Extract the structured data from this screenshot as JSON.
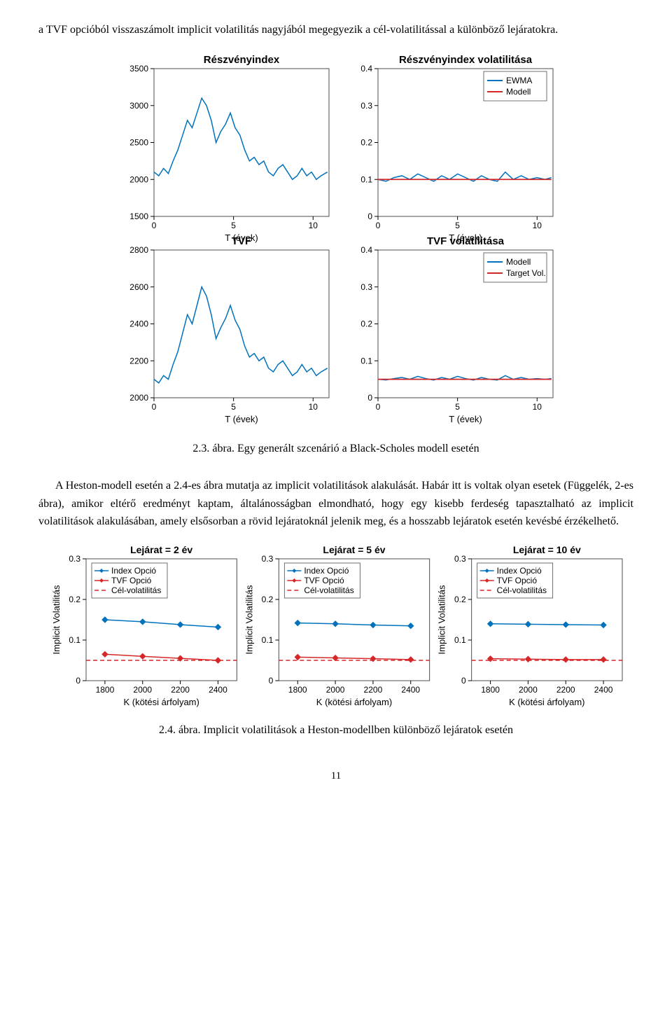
{
  "para_top": "a TVF opcióból visszaszámolt implicit volatilitás nagyjából megegyezik a cél-volatilitással a különböző lejáratokra.",
  "fig1_caption": "2.3. ábra. Egy generált szcenárió a Black-Scholes modell esetén",
  "para_mid": "A Heston-modell esetén a 2.4-es ábra mutatja az implicit volatilitások alakulását. Habár itt is voltak olyan esetek (Függelék, 2-es ábra), amikor eltérő eredményt kaptam, általánosságban elmondható, hogy egy kisebb ferdeség tapasztalható az implicit volatilitások alakulásában, amely elsősorban a rövid lejáratoknál jelenik meg, és a hosszabb lejáratok esetén kevésbé érzékelhető.",
  "fig2_caption": "2.4. ábra. Implicit volatilitások a Heston-modellben különböző lejáratok esetén",
  "page_number": "11",
  "colors": {
    "line_blue": "#0072bd",
    "line_red": "#d62728",
    "axis": "#000000",
    "box": "#4d4d4d",
    "marker": "#0072bd"
  },
  "fig1": {
    "panels": [
      {
        "key": "A",
        "title": "Részvényindex",
        "xlabel": "T (évek)",
        "ylabel": "",
        "xlim": [
          0,
          11
        ],
        "ylim": [
          1500,
          3500
        ],
        "xticks": [
          0,
          5,
          10
        ],
        "yticks": [
          1500,
          2000,
          2500,
          3000,
          3500
        ],
        "series": [
          {
            "name": "index",
            "color": "#0072bd",
            "width": 1.5,
            "dash": "",
            "pts": [
              [
                0,
                2100
              ],
              [
                0.3,
                2050
              ],
              [
                0.6,
                2150
              ],
              [
                0.9,
                2080
              ],
              [
                1.2,
                2250
              ],
              [
                1.5,
                2400
              ],
              [
                1.8,
                2600
              ],
              [
                2.1,
                2800
              ],
              [
                2.4,
                2700
              ],
              [
                2.7,
                2900
              ],
              [
                3.0,
                3100
              ],
              [
                3.3,
                3000
              ],
              [
                3.6,
                2800
              ],
              [
                3.9,
                2500
              ],
              [
                4.2,
                2650
              ],
              [
                4.5,
                2750
              ],
              [
                4.8,
                2900
              ],
              [
                5.1,
                2700
              ],
              [
                5.4,
                2600
              ],
              [
                5.7,
                2400
              ],
              [
                6.0,
                2250
              ],
              [
                6.3,
                2300
              ],
              [
                6.6,
                2200
              ],
              [
                6.9,
                2250
              ],
              [
                7.2,
                2100
              ],
              [
                7.5,
                2050
              ],
              [
                7.8,
                2150
              ],
              [
                8.1,
                2200
              ],
              [
                8.4,
                2100
              ],
              [
                8.7,
                2000
              ],
              [
                9.0,
                2050
              ],
              [
                9.3,
                2150
              ],
              [
                9.6,
                2050
              ],
              [
                9.9,
                2100
              ],
              [
                10.2,
                2000
              ],
              [
                10.5,
                2050
              ],
              [
                10.9,
                2100
              ]
            ]
          }
        ],
        "legend": null
      },
      {
        "key": "B",
        "title": "Részvényindex volatilitása",
        "xlabel": "T (évek)",
        "ylabel": "",
        "xlim": [
          0,
          11
        ],
        "ylim": [
          0,
          0.4
        ],
        "xticks": [
          0,
          5,
          10
        ],
        "yticks": [
          0,
          0.1,
          0.2,
          0.3,
          0.4
        ],
        "series": [
          {
            "name": "EWMA",
            "color": "#0072bd",
            "width": 1.5,
            "dash": "",
            "pts": [
              [
                0,
                0.1
              ],
              [
                0.5,
                0.095
              ],
              [
                1,
                0.105
              ],
              [
                1.5,
                0.11
              ],
              [
                2,
                0.1
              ],
              [
                2.5,
                0.115
              ],
              [
                3,
                0.105
              ],
              [
                3.5,
                0.095
              ],
              [
                4,
                0.11
              ],
              [
                4.5,
                0.1
              ],
              [
                5,
                0.115
              ],
              [
                5.5,
                0.105
              ],
              [
                6,
                0.095
              ],
              [
                6.5,
                0.11
              ],
              [
                7,
                0.1
              ],
              [
                7.5,
                0.095
              ],
              [
                8,
                0.12
              ],
              [
                8.5,
                0.1
              ],
              [
                9,
                0.11
              ],
              [
                9.5,
                0.1
              ],
              [
                10,
                0.105
              ],
              [
                10.5,
                0.1
              ],
              [
                10.9,
                0.105
              ]
            ]
          },
          {
            "name": "Modell",
            "color": "#d62728",
            "width": 1.8,
            "dash": "",
            "pts": [
              [
                0,
                0.1
              ],
              [
                10.9,
                0.1
              ]
            ]
          }
        ],
        "legend": {
          "pos": "ne",
          "items": [
            {
              "label": "EWMA",
              "color": "#0072bd"
            },
            {
              "label": "Modell",
              "color": "#d62728"
            }
          ]
        }
      },
      {
        "key": "C",
        "title": "TVF",
        "xlabel": "T (évek)",
        "ylabel": "",
        "xlim": [
          0,
          11
        ],
        "ylim": [
          2000,
          2800
        ],
        "xticks": [
          0,
          5,
          10
        ],
        "yticks": [
          2000,
          2200,
          2400,
          2600,
          2800
        ],
        "series": [
          {
            "name": "tvf",
            "color": "#0072bd",
            "width": 1.5,
            "dash": "",
            "pts": [
              [
                0,
                2100
              ],
              [
                0.3,
                2080
              ],
              [
                0.6,
                2120
              ],
              [
                0.9,
                2100
              ],
              [
                1.2,
                2180
              ],
              [
                1.5,
                2250
              ],
              [
                1.8,
                2350
              ],
              [
                2.1,
                2450
              ],
              [
                2.4,
                2400
              ],
              [
                2.7,
                2500
              ],
              [
                3.0,
                2600
              ],
              [
                3.3,
                2550
              ],
              [
                3.6,
                2450
              ],
              [
                3.9,
                2320
              ],
              [
                4.2,
                2380
              ],
              [
                4.5,
                2430
              ],
              [
                4.8,
                2500
              ],
              [
                5.1,
                2420
              ],
              [
                5.4,
                2370
              ],
              [
                5.7,
                2280
              ],
              [
                6.0,
                2220
              ],
              [
                6.3,
                2240
              ],
              [
                6.6,
                2200
              ],
              [
                6.9,
                2220
              ],
              [
                7.2,
                2160
              ],
              [
                7.5,
                2140
              ],
              [
                7.8,
                2180
              ],
              [
                8.1,
                2200
              ],
              [
                8.4,
                2160
              ],
              [
                8.7,
                2120
              ],
              [
                9.0,
                2140
              ],
              [
                9.3,
                2180
              ],
              [
                9.6,
                2140
              ],
              [
                9.9,
                2160
              ],
              [
                10.2,
                2120
              ],
              [
                10.5,
                2140
              ],
              [
                10.9,
                2160
              ]
            ]
          }
        ],
        "legend": null
      },
      {
        "key": "D",
        "title": "TVF volatilitása",
        "xlabel": "T (évek)",
        "ylabel": "",
        "xlim": [
          0,
          11
        ],
        "ylim": [
          0,
          0.4
        ],
        "xticks": [
          0,
          5,
          10
        ],
        "yticks": [
          0,
          0.1,
          0.2,
          0.3,
          0.4
        ],
        "series": [
          {
            "name": "Modell",
            "color": "#0072bd",
            "width": 1.5,
            "dash": "",
            "pts": [
              [
                0,
                0.05
              ],
              [
                0.5,
                0.048
              ],
              [
                1,
                0.052
              ],
              [
                1.5,
                0.055
              ],
              [
                2,
                0.05
              ],
              [
                2.5,
                0.058
              ],
              [
                3,
                0.052
              ],
              [
                3.5,
                0.048
              ],
              [
                4,
                0.055
              ],
              [
                4.5,
                0.05
              ],
              [
                5,
                0.058
              ],
              [
                5.5,
                0.052
              ],
              [
                6,
                0.048
              ],
              [
                6.5,
                0.055
              ],
              [
                7,
                0.05
              ],
              [
                7.5,
                0.048
              ],
              [
                8,
                0.06
              ],
              [
                8.5,
                0.05
              ],
              [
                9,
                0.055
              ],
              [
                9.5,
                0.05
              ],
              [
                10,
                0.052
              ],
              [
                10.5,
                0.05
              ],
              [
                10.9,
                0.052
              ]
            ]
          },
          {
            "name": "Target Vol.",
            "color": "#d62728",
            "width": 1.8,
            "dash": "",
            "pts": [
              [
                0,
                0.05
              ],
              [
                10.9,
                0.05
              ]
            ]
          }
        ],
        "legend": {
          "pos": "ne",
          "items": [
            {
              "label": "Modell",
              "color": "#0072bd"
            },
            {
              "label": "Target Vol.",
              "color": "#d62728"
            }
          ]
        }
      }
    ]
  },
  "fig2": {
    "xlabel": "K (kötési árfolyam)",
    "ylabel": "Implicit Volatilitás",
    "xlim": [
      1700,
      2500
    ],
    "ylim": [
      0,
      0.3
    ],
    "xticks": [
      1800,
      2000,
      2200,
      2400
    ],
    "yticks": [
      0,
      0.1,
      0.2,
      0.3
    ],
    "legend_items": [
      {
        "label": "Index Opció",
        "color": "#0072bd",
        "dash": "",
        "marker": true
      },
      {
        "label": "TVF Opció",
        "color": "#d62728",
        "dash": "",
        "marker": true
      },
      {
        "label": "Cél-volatilitás",
        "color": "#d62728",
        "dash": "6,4",
        "marker": false
      }
    ],
    "panels": [
      {
        "title": "Lejárat = 2 év",
        "series": [
          {
            "color": "#0072bd",
            "dash": "",
            "marker": true,
            "pts": [
              [
                1800,
                0.15
              ],
              [
                2000,
                0.145
              ],
              [
                2200,
                0.138
              ],
              [
                2400,
                0.132
              ]
            ]
          },
          {
            "color": "#d62728",
            "dash": "",
            "marker": true,
            "pts": [
              [
                1800,
                0.065
              ],
              [
                2000,
                0.06
              ],
              [
                2200,
                0.055
              ],
              [
                2400,
                0.05
              ]
            ]
          },
          {
            "color": "#d62728",
            "dash": "6,4",
            "marker": false,
            "pts": [
              [
                1700,
                0.05
              ],
              [
                2500,
                0.05
              ]
            ]
          }
        ]
      },
      {
        "title": "Lejárat = 5 év",
        "series": [
          {
            "color": "#0072bd",
            "dash": "",
            "marker": true,
            "pts": [
              [
                1800,
                0.142
              ],
              [
                2000,
                0.14
              ],
              [
                2200,
                0.137
              ],
              [
                2400,
                0.135
              ]
            ]
          },
          {
            "color": "#d62728",
            "dash": "",
            "marker": true,
            "pts": [
              [
                1800,
                0.058
              ],
              [
                2000,
                0.056
              ],
              [
                2200,
                0.054
              ],
              [
                2400,
                0.052
              ]
            ]
          },
          {
            "color": "#d62728",
            "dash": "6,4",
            "marker": false,
            "pts": [
              [
                1700,
                0.05
              ],
              [
                2500,
                0.05
              ]
            ]
          }
        ]
      },
      {
        "title": "Lejárat = 10 év",
        "series": [
          {
            "color": "#0072bd",
            "dash": "",
            "marker": true,
            "pts": [
              [
                1800,
                0.14
              ],
              [
                2000,
                0.139
              ],
              [
                2200,
                0.138
              ],
              [
                2400,
                0.137
              ]
            ]
          },
          {
            "color": "#d62728",
            "dash": "",
            "marker": true,
            "pts": [
              [
                1800,
                0.054
              ],
              [
                2000,
                0.053
              ],
              [
                2200,
                0.052
              ],
              [
                2400,
                0.052
              ]
            ]
          },
          {
            "color": "#d62728",
            "dash": "6,4",
            "marker": false,
            "pts": [
              [
                1700,
                0.05
              ],
              [
                2500,
                0.05
              ]
            ]
          }
        ]
      }
    ]
  }
}
